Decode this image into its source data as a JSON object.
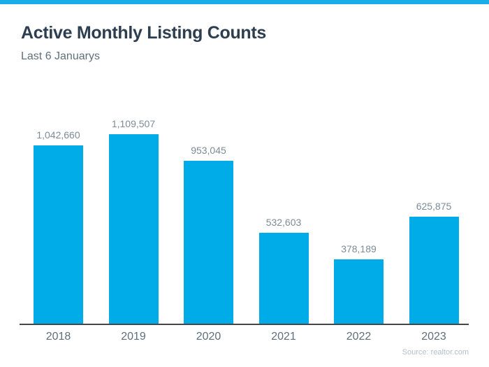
{
  "page": {
    "title": "Active Monthly Listing Counts",
    "subtitle": "Last 6 Januarys",
    "source_note": "Source: realtor.com"
  },
  "colors": {
    "accent_strip": "#19ADE9",
    "bar_fill": "#00ACE8",
    "title_text": "#2C3E50",
    "subtitle_text": "#5F707B",
    "value_label_text": "#7D8B97",
    "year_label_text": "#5E6E7C",
    "axis_line": "#474747",
    "source_text": "#B3BFC8",
    "background": "#FFFFFF"
  },
  "chart_data": {
    "type": "bar",
    "title": "Active Monthly Listing Counts",
    "subtitle": "Last 6 Januarys",
    "categories": [
      "2018",
      "2019",
      "2020",
      "2021",
      "2022",
      "2023"
    ],
    "values": [
      1042660,
      1109507,
      953045,
      532603,
      378189,
      625875
    ],
    "value_labels": [
      "1,042,660",
      "1,109,507",
      "953,045",
      "532,603",
      "378,189",
      "625,875"
    ],
    "xlabel": "",
    "ylabel": "",
    "ylim": [
      0,
      1200000
    ],
    "grid": false,
    "legend_position": "none",
    "y_axis_visible": false,
    "bar_color": "#00ACE8",
    "source": "Source: realtor.com"
  }
}
